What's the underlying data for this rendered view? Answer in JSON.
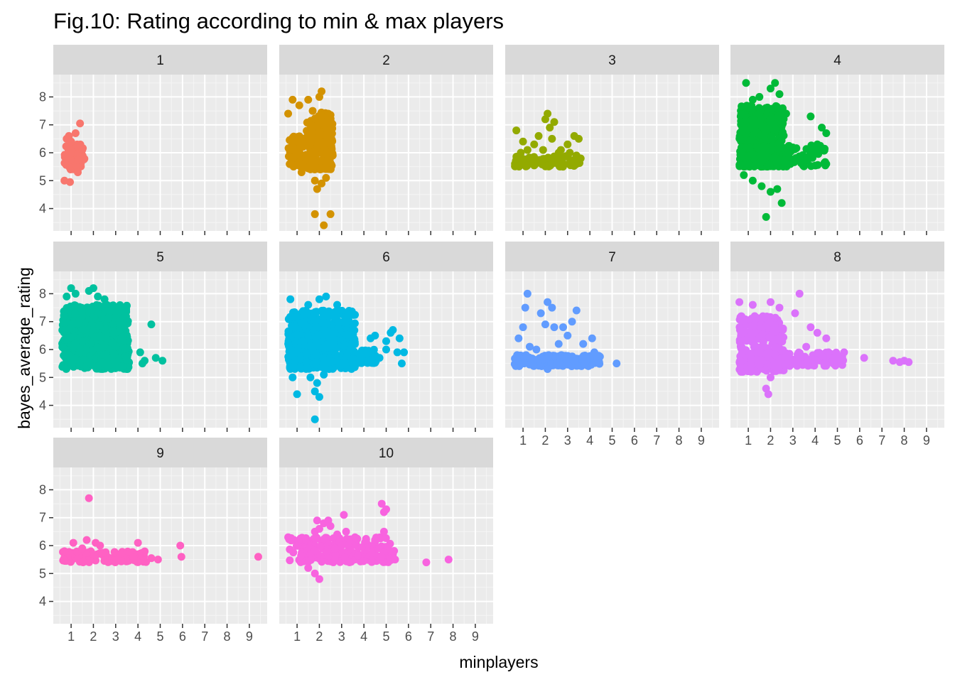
{
  "chart_data": {
    "type": "scatter",
    "title": "Fig.10: Rating according to min & max players",
    "xlabel": "minplayers",
    "ylabel": "bayes_average_rating",
    "xlim": [
      0.2,
      9.8
    ],
    "ylim": [
      3.2,
      8.8
    ],
    "x_ticks": [
      "1",
      "2",
      "3",
      "4",
      "5",
      "6",
      "7",
      "8",
      "9"
    ],
    "y_ticks": [
      "4",
      "5",
      "6",
      "7",
      "8"
    ],
    "grid": true,
    "legend": "none",
    "panels": [
      {
        "label": "1",
        "color": "#F8766D",
        "clusters": [
          {
            "x": [
              0.7,
              1.6
            ],
            "y": [
              5.4,
              6.3
            ],
            "n": 70
          }
        ],
        "points": [
          [
            0.9,
            6.6
          ],
          [
            1.2,
            6.7
          ],
          [
            1.4,
            7.05
          ],
          [
            0.8,
            6.5
          ],
          [
            1.0,
            6.4
          ],
          [
            0.7,
            5.0
          ],
          [
            0.95,
            4.95
          ],
          [
            1.3,
            5.3
          ],
          [
            1.5,
            6.1
          ]
        ]
      },
      {
        "label": "2",
        "color": "#D39200",
        "clusters": [
          {
            "x": [
              0.6,
              1.3
            ],
            "y": [
              5.5,
              6.6
            ],
            "n": 60
          },
          {
            "x": [
              1.4,
              2.6
            ],
            "y": [
              5.4,
              7.1
            ],
            "n": 170
          },
          {
            "x": [
              1.5,
              2.6
            ],
            "y": [
              6.0,
              7.5
            ],
            "n": 60
          }
        ],
        "points": [
          [
            0.6,
            7.4
          ],
          [
            0.8,
            7.9
          ],
          [
            1.1,
            7.7
          ],
          [
            1.5,
            7.9
          ],
          [
            2.0,
            8.0
          ],
          [
            2.1,
            8.2
          ],
          [
            1.7,
            7.5
          ],
          [
            2.4,
            7.4
          ],
          [
            1.8,
            5.0
          ],
          [
            1.9,
            4.7
          ],
          [
            2.1,
            4.9
          ],
          [
            2.3,
            5.1
          ],
          [
            1.8,
            3.8
          ],
          [
            2.2,
            3.4
          ],
          [
            2.5,
            3.8
          ],
          [
            1.2,
            5.3
          ],
          [
            2.6,
            5.9
          ]
        ]
      },
      {
        "label": "3",
        "color": "#93AA00",
        "clusters": [
          {
            "x": [
              0.6,
              3.6
            ],
            "y": [
              5.5,
              5.9
            ],
            "n": 90
          }
        ],
        "points": [
          [
            0.7,
            6.8
          ],
          [
            1.0,
            6.4
          ],
          [
            1.5,
            6.3
          ],
          [
            1.7,
            6.6
          ],
          [
            2.0,
            7.2
          ],
          [
            2.1,
            7.4
          ],
          [
            2.2,
            6.9
          ],
          [
            2.4,
            7.1
          ],
          [
            2.3,
            6.5
          ],
          [
            2.7,
            6.1
          ],
          [
            3.0,
            6.3
          ],
          [
            3.3,
            6.6
          ],
          [
            3.5,
            6.5
          ],
          [
            1.2,
            6.1
          ],
          [
            3.1,
            6.0
          ],
          [
            0.9,
            6.0
          ],
          [
            2.6,
            6.0
          ],
          [
            1.9,
            6.1
          ],
          [
            3.4,
            5.9
          ]
        ]
      },
      {
        "label": "4",
        "color": "#00BA38",
        "clusters": [
          {
            "x": [
              0.6,
              2.6
            ],
            "y": [
              5.5,
              7.7
            ],
            "n": 430
          },
          {
            "x": [
              0.6,
              4.5
            ],
            "y": [
              5.5,
              6.3
            ],
            "n": 140
          }
        ],
        "points": [
          [
            0.9,
            8.5
          ],
          [
            2.0,
            8.3
          ],
          [
            2.2,
            8.5
          ],
          [
            1.5,
            8.0
          ],
          [
            1.2,
            7.9
          ],
          [
            2.4,
            8.1
          ],
          [
            3.8,
            7.3
          ],
          [
            2.7,
            7.4
          ],
          [
            1.2,
            5.0
          ],
          [
            1.6,
            4.8
          ],
          [
            2.0,
            4.6
          ],
          [
            2.3,
            4.7
          ],
          [
            2.5,
            4.2
          ],
          [
            1.8,
            3.7
          ],
          [
            0.8,
            5.2
          ],
          [
            4.3,
            6.9
          ],
          [
            4.5,
            6.7
          ],
          [
            4.1,
            6.3
          ],
          [
            4.5,
            5.6
          ]
        ]
      },
      {
        "label": "5",
        "color": "#00C19F",
        "clusters": [
          {
            "x": [
              0.6,
              3.6
            ],
            "y": [
              5.3,
              7.6
            ],
            "n": 520
          },
          {
            "x": [
              0.6,
              3.6
            ],
            "y": [
              5.4,
              6.5
            ],
            "n": 160
          }
        ],
        "points": [
          [
            0.8,
            7.9
          ],
          [
            1.0,
            8.2
          ],
          [
            1.2,
            8.0
          ],
          [
            1.8,
            8.1
          ],
          [
            2.0,
            8.2
          ],
          [
            2.2,
            7.9
          ],
          [
            2.5,
            7.8
          ],
          [
            3.0,
            7.5
          ],
          [
            4.6,
            6.9
          ],
          [
            4.1,
            5.9
          ],
          [
            4.2,
            5.5
          ],
          [
            4.3,
            5.6
          ],
          [
            4.8,
            5.7
          ],
          [
            5.1,
            5.6
          ],
          [
            3.3,
            5.4
          ]
        ]
      },
      {
        "label": "6",
        "color": "#00B9E3",
        "clusters": [
          {
            "x": [
              0.6,
              3.6
            ],
            "y": [
              5.3,
              7.4
            ],
            "n": 580
          },
          {
            "x": [
              3.5,
              4.6
            ],
            "y": [
              5.5,
              6.0
            ],
            "n": 50
          }
        ],
        "points": [
          [
            0.7,
            7.8
          ],
          [
            1.5,
            7.6
          ],
          [
            2.0,
            7.8
          ],
          [
            2.3,
            7.9
          ],
          [
            2.8,
            7.6
          ],
          [
            3.2,
            7.0
          ],
          [
            1.6,
            5.0
          ],
          [
            1.8,
            4.5
          ],
          [
            1.9,
            4.8
          ],
          [
            2.0,
            4.3
          ],
          [
            2.2,
            5.1
          ],
          [
            1.8,
            3.5
          ],
          [
            0.8,
            5.0
          ],
          [
            1.0,
            4.4
          ],
          [
            4.3,
            6.4
          ],
          [
            4.5,
            6.5
          ],
          [
            4.7,
            5.7
          ],
          [
            5.0,
            6.3
          ],
          [
            5.2,
            6.6
          ],
          [
            5.3,
            6.7
          ],
          [
            5.6,
            6.4
          ],
          [
            5.5,
            5.9
          ],
          [
            5.8,
            5.9
          ],
          [
            5.7,
            5.5
          ],
          [
            4.0,
            5.9
          ],
          [
            5.0,
            6.0
          ]
        ]
      },
      {
        "label": "7",
        "color": "#619CFF",
        "clusters": [
          {
            "x": [
              0.6,
              4.5
            ],
            "y": [
              5.4,
              5.8
            ],
            "n": 170
          }
        ],
        "points": [
          [
            0.8,
            6.4
          ],
          [
            1.0,
            6.8
          ],
          [
            1.1,
            7.5
          ],
          [
            1.2,
            8.0
          ],
          [
            1.8,
            7.3
          ],
          [
            2.1,
            7.7
          ],
          [
            2.3,
            7.5
          ],
          [
            2.0,
            6.9
          ],
          [
            2.4,
            6.8
          ],
          [
            2.8,
            6.8
          ],
          [
            3.2,
            7.0
          ],
          [
            3.4,
            7.4
          ],
          [
            3.0,
            6.5
          ],
          [
            3.7,
            6.2
          ],
          [
            4.1,
            6.4
          ],
          [
            4.2,
            5.9
          ],
          [
            2.6,
            6.2
          ],
          [
            1.6,
            6.0
          ],
          [
            5.2,
            5.5
          ],
          [
            2.1,
            5.3
          ],
          [
            1.3,
            6.1
          ]
        ]
      },
      {
        "label": "8",
        "color": "#DB72FB",
        "clusters": [
          {
            "x": [
              0.6,
              2.6
            ],
            "y": [
              5.2,
              7.2
            ],
            "n": 260
          },
          {
            "x": [
              0.6,
              5.3
            ],
            "y": [
              5.4,
              5.9
            ],
            "n": 140
          }
        ],
        "points": [
          [
            0.6,
            7.7
          ],
          [
            1.2,
            7.6
          ],
          [
            2.0,
            7.7
          ],
          [
            2.4,
            7.5
          ],
          [
            3.3,
            8.0
          ],
          [
            3.1,
            7.3
          ],
          [
            3.8,
            6.8
          ],
          [
            4.1,
            6.6
          ],
          [
            4.5,
            6.4
          ],
          [
            3.6,
            6.1
          ],
          [
            1.8,
            4.6
          ],
          [
            1.9,
            4.4
          ],
          [
            2.0,
            5.0
          ],
          [
            4.6,
            5.9
          ],
          [
            5.0,
            5.7
          ],
          [
            5.3,
            5.9
          ],
          [
            6.2,
            5.7
          ],
          [
            7.5,
            5.6
          ],
          [
            7.8,
            5.55
          ],
          [
            8.0,
            5.6
          ],
          [
            8.2,
            5.55
          ],
          [
            4.0,
            5.6
          ]
        ]
      },
      {
        "label": "9",
        "color": "#FF61C3",
        "clusters": [
          {
            "x": [
              0.6,
              4.4
            ],
            "y": [
              5.4,
              5.8
            ],
            "n": 110
          }
        ],
        "points": [
          [
            1.8,
            7.7
          ],
          [
            1.1,
            6.1
          ],
          [
            1.7,
            6.2
          ],
          [
            2.1,
            6.1
          ],
          [
            2.3,
            6.0
          ],
          [
            4.0,
            6.1
          ],
          [
            5.9,
            6.0
          ],
          [
            5.95,
            5.6
          ],
          [
            9.4,
            5.6
          ],
          [
            0.7,
            5.8
          ],
          [
            4.6,
            5.55
          ],
          [
            4.9,
            5.5
          ],
          [
            3.2,
            5.7
          ],
          [
            1.5,
            5.9
          ]
        ]
      },
      {
        "label": "10",
        "color": "#F863DF",
        "clusters": [
          {
            "x": [
              0.6,
              5.4
            ],
            "y": [
              5.4,
              6.3
            ],
            "n": 190
          }
        ],
        "points": [
          [
            0.6,
            6.3
          ],
          [
            1.0,
            6.0
          ],
          [
            1.8,
            6.5
          ],
          [
            1.9,
            6.9
          ],
          [
            2.0,
            6.6
          ],
          [
            2.2,
            6.8
          ],
          [
            2.4,
            6.9
          ],
          [
            2.5,
            6.7
          ],
          [
            2.8,
            6.4
          ],
          [
            3.1,
            7.1
          ],
          [
            3.2,
            6.5
          ],
          [
            3.6,
            6.3
          ],
          [
            4.1,
            6.2
          ],
          [
            4.5,
            6.2
          ],
          [
            4.8,
            7.5
          ],
          [
            4.9,
            7.2
          ],
          [
            5.0,
            7.3
          ],
          [
            4.9,
            6.5
          ],
          [
            1.8,
            5.0
          ],
          [
            2.0,
            4.8
          ],
          [
            1.5,
            5.2
          ],
          [
            5.3,
            5.8
          ],
          [
            5.4,
            5.5
          ],
          [
            6.8,
            5.4
          ],
          [
            7.8,
            5.5
          ],
          [
            3.0,
            6.0
          ],
          [
            2.7,
            5.9
          ]
        ]
      }
    ]
  }
}
